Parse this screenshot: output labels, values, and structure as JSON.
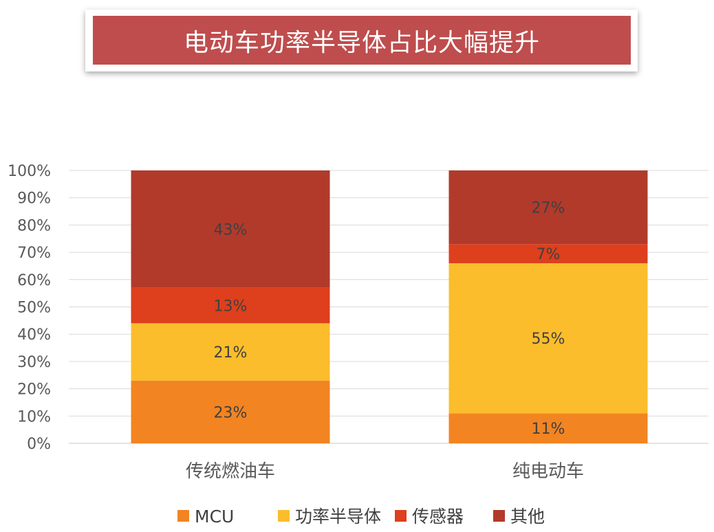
{
  "banner": {
    "title": "电动车功率半导体占比大幅提升",
    "bg_color": "#bf4d4d"
  },
  "chart_data": {
    "type": "bar",
    "stacked": true,
    "categories": [
      "传统燃油车",
      "纯电动车"
    ],
    "series": [
      {
        "name": "MCU",
        "color": "#f28422",
        "values": [
          23,
          11
        ],
        "labels": [
          "23%",
          "11%"
        ]
      },
      {
        "name": "功率半导体",
        "color": "#fbbd2c",
        "values": [
          21,
          55
        ],
        "labels": [
          "21%",
          "55%"
        ]
      },
      {
        "name": "传感器",
        "color": "#de3f1c",
        "values": [
          13,
          7
        ],
        "labels": [
          "13%",
          "7%"
        ]
      },
      {
        "name": "其他",
        "color": "#b13a2b",
        "values": [
          43,
          27
        ],
        "labels": [
          "43%",
          "27%"
        ]
      }
    ],
    "ylim": [
      0,
      100
    ],
    "yticks": [
      "0%",
      "10%",
      "20%",
      "30%",
      "40%",
      "50%",
      "60%",
      "70%",
      "80%",
      "90%",
      "100%"
    ],
    "grid": true,
    "legend_position": "bottom"
  }
}
